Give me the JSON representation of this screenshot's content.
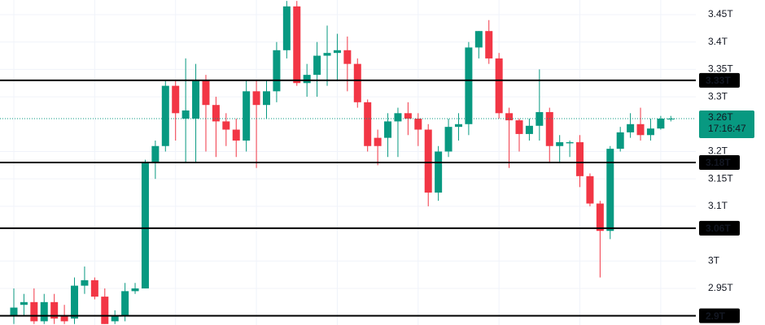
{
  "chart_data": {
    "type": "candlestick",
    "series": [
      {
        "up_color": "#089981",
        "down_color": "#f23645",
        "open": [
          2.9,
          2.92,
          2.925,
          2.89,
          2.925,
          2.9,
          2.895,
          2.955,
          2.965,
          2.935,
          2.89,
          2.9,
          2.945,
          2.95,
          3.18,
          3.21,
          3.32,
          3.26,
          3.26,
          3.33,
          3.285,
          3.255,
          3.24,
          3.22,
          3.31,
          3.285,
          3.31,
          3.385,
          3.465,
          3.325,
          3.34,
          3.375,
          3.38,
          3.385,
          3.36,
          3.29,
          3.225,
          3.225,
          3.255,
          3.27,
          3.26,
          3.24,
          3.125,
          3.2,
          3.245,
          3.25,
          3.39,
          3.42,
          3.37,
          3.27,
          3.257,
          3.232,
          3.247,
          3.272,
          3.21,
          3.215,
          3.217,
          3.155,
          3.105,
          3.055,
          3.205,
          3.235,
          3.25,
          3.23,
          3.242,
          3.26
        ],
        "high": [
          2.95,
          2.94,
          2.95,
          2.94,
          2.94,
          2.92,
          2.97,
          2.99,
          2.97,
          2.95,
          2.91,
          2.96,
          2.96,
          3.185,
          3.22,
          3.33,
          3.33,
          3.37,
          3.36,
          3.34,
          3.3,
          3.27,
          3.26,
          3.33,
          3.33,
          3.33,
          3.4,
          3.475,
          3.475,
          3.36,
          3.4,
          3.43,
          3.415,
          3.41,
          3.37,
          3.295,
          3.24,
          3.27,
          3.28,
          3.29,
          3.27,
          3.25,
          3.21,
          3.26,
          3.27,
          3.4,
          3.42,
          3.44,
          3.38,
          3.28,
          3.26,
          3.26,
          3.35,
          3.28,
          3.23,
          3.22,
          3.23,
          3.16,
          3.11,
          3.21,
          3.245,
          3.27,
          3.28,
          3.26,
          3.265,
          3.265
        ],
        "low": [
          2.885,
          2.9,
          2.885,
          2.885,
          2.885,
          2.885,
          2.885,
          2.94,
          2.93,
          2.885,
          2.885,
          2.89,
          2.94,
          2.95,
          3.15,
          3.2,
          3.22,
          3.18,
          3.18,
          3.2,
          3.19,
          3.21,
          3.19,
          3.2,
          3.17,
          3.26,
          3.29,
          3.37,
          3.32,
          3.3,
          3.3,
          3.32,
          3.33,
          3.31,
          3.28,
          3.2,
          3.175,
          3.19,
          3.19,
          3.23,
          3.21,
          3.1,
          3.11,
          3.19,
          3.22,
          3.23,
          3.37,
          3.36,
          3.26,
          3.17,
          3.2,
          3.22,
          3.22,
          3.18,
          3.18,
          3.19,
          3.135,
          3.1,
          2.97,
          3.04,
          3.2,
          3.225,
          3.22,
          3.22,
          3.24,
          3.255
        ],
        "close": [
          2.915,
          2.925,
          2.89,
          2.925,
          2.895,
          2.89,
          2.955,
          2.965,
          2.935,
          2.885,
          2.9,
          2.945,
          2.95,
          3.18,
          3.21,
          3.32,
          3.27,
          3.275,
          3.33,
          3.285,
          3.255,
          3.24,
          3.22,
          3.31,
          3.285,
          3.31,
          3.385,
          3.465,
          3.325,
          3.34,
          3.375,
          3.38,
          3.385,
          3.36,
          3.29,
          3.21,
          3.21,
          3.255,
          3.27,
          3.26,
          3.24,
          3.125,
          3.2,
          3.245,
          3.25,
          3.39,
          3.42,
          3.37,
          3.27,
          3.257,
          3.232,
          3.247,
          3.272,
          3.21,
          3.217,
          3.217,
          3.155,
          3.105,
          3.055,
          3.205,
          3.235,
          3.25,
          3.23,
          3.242,
          3.26,
          3.26
        ]
      }
    ],
    "ylim": [
      2.8832,
      3.4767
    ],
    "yticks": [
      {
        "value": 3.45,
        "label": "3.45T"
      },
      {
        "value": 3.4,
        "label": "3.4T"
      },
      {
        "value": 3.35,
        "label": "3.35T"
      },
      {
        "value": 3.3,
        "label": "3.3T"
      },
      {
        "value": 3.2,
        "label": "3.2T"
      },
      {
        "value": 3.15,
        "label": "3.15T"
      },
      {
        "value": 3.1,
        "label": "3.1T"
      },
      {
        "value": 3,
        "label": "3T"
      },
      {
        "value": 2.95,
        "label": "2.95T"
      }
    ],
    "grid": true,
    "hlines": [
      {
        "value": 3.33,
        "label": "3.33T"
      },
      {
        "value": 3.18,
        "label": "3.18T"
      },
      {
        "value": 3.06,
        "label": "3.06T"
      },
      {
        "value": 2.9,
        "label": "2.9T"
      }
    ],
    "last_price": {
      "value": 3.26,
      "label": "3.26T",
      "countdown": "17:16:47"
    }
  }
}
